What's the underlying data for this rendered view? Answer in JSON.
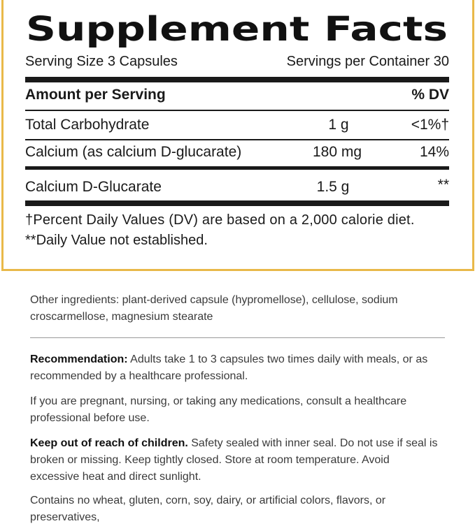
{
  "facts": {
    "title": "Supplement Facts",
    "serving_size": "Serving Size 3 Capsules",
    "servings_per_container": "Servings per Container 30",
    "header": {
      "amount": "Amount per Serving",
      "dv": "% DV"
    },
    "rows": [
      {
        "name": "Total Carbohydrate",
        "amount": "1 g",
        "dv": "<1%†"
      },
      {
        "name": "Calcium (as calcium D-glucarate)",
        "amount": "180 mg",
        "dv": "14%"
      },
      {
        "name": "Calcium D-Glucarate",
        "amount": "1.5 g",
        "dv": "**"
      }
    ],
    "footnotes": [
      "†Percent Daily Values (DV) are based on a 2,000 calorie diet.",
      "**Daily Value not established."
    ]
  },
  "other_ingredients": "Other ingredients: plant-derived capsule (hypromellose), cellulose, sodium croscarmellose, magnesium stearate",
  "paragraphs": [
    {
      "lead": "Recommendation:",
      "text": " Adults take 1 to 3 capsules two times daily with meals, or as recommended by a healthcare professional."
    },
    {
      "text": "If you are pregnant, nursing, or taking any medications, consult a healthcare professional before use."
    },
    {
      "lead": "Keep out of reach of children.",
      "text": " Safety sealed with inner seal. Do not use if seal is broken or missing. Keep tightly closed. Store at room temperature. Avoid excessive heat and direct sunlight."
    },
    {
      "text": "Contains no wheat, gluten, corn, soy, dairy, or artificial colors, flavors, or preservatives,"
    }
  ]
}
